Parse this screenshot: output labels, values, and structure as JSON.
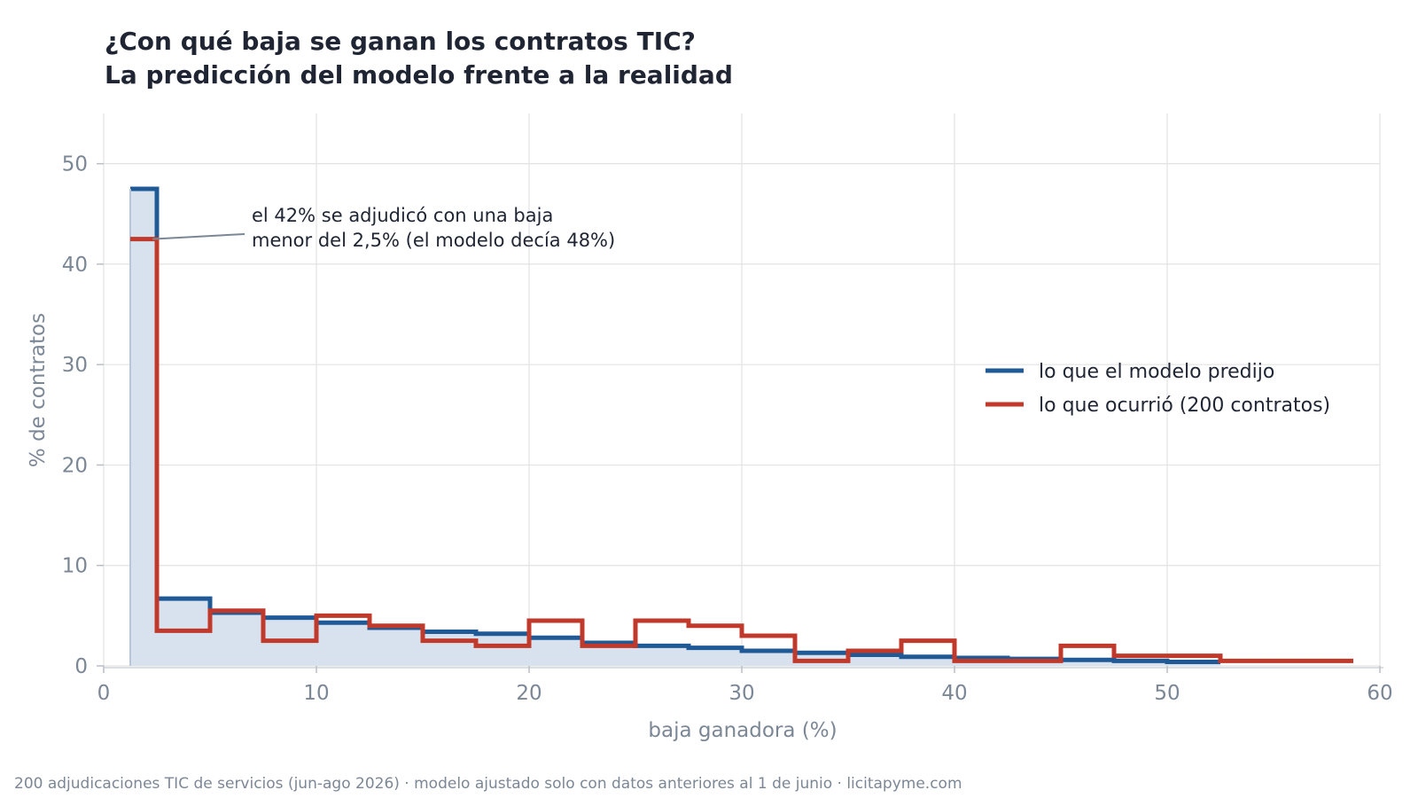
{
  "title": {
    "line1": "¿Con qué baja se ganan los contratos TIC?",
    "line2": "La predicción del modelo frente a la realidad"
  },
  "caption": "200 adjudicaciones TIC de servicios (jun-ago 2026) · modelo ajustado solo con datos anteriores al 1 de junio · licitapyme.com",
  "colors": {
    "predicted": "#1f5a96",
    "predicted_fill": "#d8e1ee",
    "observed": "#c0392b",
    "grid": "#e3e3e3",
    "axis_text": "#7c8796",
    "text": "#1f2533"
  },
  "chart_data": {
    "type": "step",
    "xlabel": "baja ganadora (%)",
    "ylabel": "% de contratos",
    "xlim": [
      0,
      60
    ],
    "ylim": [
      0,
      55
    ],
    "xticks": [
      0,
      10,
      20,
      30,
      40,
      50,
      60
    ],
    "yticks": [
      0,
      10,
      20,
      30,
      40,
      50
    ],
    "grid": true,
    "legend_position": "right",
    "bin_edges": [
      1.25,
      2.5,
      5,
      7.5,
      10,
      12.5,
      15,
      17.5,
      20,
      22.5,
      25,
      27.5,
      30,
      32.5,
      35,
      37.5,
      40,
      42.5,
      45,
      47.5,
      50,
      52.5,
      55,
      58.75
    ],
    "series": [
      {
        "name": "lo que el modelo predijo",
        "values": [
          47.5,
          6.7,
          5.3,
          4.8,
          4.3,
          3.8,
          3.4,
          3.2,
          2.8,
          2.3,
          2.0,
          1.8,
          1.5,
          1.3,
          1.1,
          0.9,
          0.8,
          0.7,
          0.6,
          0.5,
          0.4,
          null,
          null
        ]
      },
      {
        "name": "lo que ocurrió (200 contratos)",
        "values": [
          42.5,
          3.5,
          5.5,
          2.5,
          5.0,
          4.0,
          2.5,
          2.0,
          4.5,
          2.0,
          4.5,
          4.0,
          3.0,
          0.5,
          1.5,
          2.5,
          0.5,
          0.5,
          2.0,
          1.0,
          1.0,
          0.5,
          0.5
        ]
      }
    ],
    "annotation": {
      "line1": "el 42% se adjudicó con una baja",
      "line2": "menor del 2,5% (el modelo decía 48%)",
      "point": [
        2.3,
        42.5
      ]
    }
  }
}
